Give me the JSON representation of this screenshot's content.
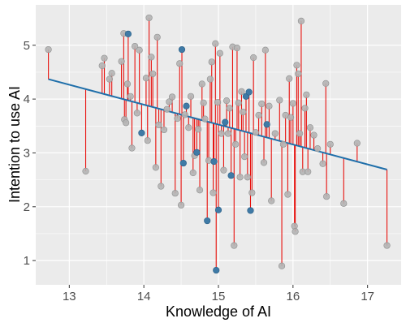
{
  "chart_data": {
    "type": "scatter",
    "xlabel": "Knowledge of AI",
    "ylabel": "Intention to use AI",
    "xlim": [
      12.55,
      17.45
    ],
    "ylim": [
      0.55,
      5.75
    ],
    "x_ticks": [
      13,
      14,
      15,
      16,
      17
    ],
    "y_ticks": [
      1,
      2,
      3,
      4,
      5
    ],
    "grid": true,
    "legend": "none",
    "regression_line": {
      "x": [
        12.72,
        17.26
      ],
      "y": [
        4.37,
        2.69
      ]
    },
    "colors": {
      "panel_background": "#ebebeb",
      "grid": "#ffffff",
      "regression_line": "#1f6faa",
      "residual": "#e8100c",
      "point_gray": "#b4b4b4",
      "point_blue": "#3f7aa6",
      "point_outline": "#8f8f8f"
    },
    "points": [
      {
        "x": 12.72,
        "y": 4.92,
        "hl": false
      },
      {
        "x": 13.22,
        "y": 2.66,
        "hl": false
      },
      {
        "x": 13.44,
        "y": 4.62,
        "hl": false
      },
      {
        "x": 13.47,
        "y": 4.76,
        "hl": false
      },
      {
        "x": 13.54,
        "y": 4.37,
        "hl": false
      },
      {
        "x": 13.57,
        "y": 4.48,
        "hl": false
      },
      {
        "x": 13.7,
        "y": 4.7,
        "hl": false
      },
      {
        "x": 13.73,
        "y": 5.22,
        "hl": false
      },
      {
        "x": 13.74,
        "y": 3.62,
        "hl": false
      },
      {
        "x": 13.76,
        "y": 3.56,
        "hl": false
      },
      {
        "x": 13.78,
        "y": 4.28,
        "hl": false
      },
      {
        "x": 13.79,
        "y": 5.21,
        "hl": true
      },
      {
        "x": 13.82,
        "y": 4.05,
        "hl": false
      },
      {
        "x": 13.84,
        "y": 3.09,
        "hl": false
      },
      {
        "x": 13.88,
        "y": 4.98,
        "hl": false
      },
      {
        "x": 13.91,
        "y": 3.74,
        "hl": false
      },
      {
        "x": 13.94,
        "y": 4.91,
        "hl": false
      },
      {
        "x": 13.97,
        "y": 3.37,
        "hl": true
      },
      {
        "x": 14.03,
        "y": 4.39,
        "hl": false
      },
      {
        "x": 14.05,
        "y": 3.23,
        "hl": false
      },
      {
        "x": 14.07,
        "y": 5.51,
        "hl": false
      },
      {
        "x": 14.1,
        "y": 4.78,
        "hl": false
      },
      {
        "x": 14.12,
        "y": 4.47,
        "hl": false
      },
      {
        "x": 14.16,
        "y": 2.73,
        "hl": false
      },
      {
        "x": 14.18,
        "y": 5.15,
        "hl": false
      },
      {
        "x": 14.2,
        "y": 3.52,
        "hl": false
      },
      {
        "x": 14.23,
        "y": 2.38,
        "hl": false
      },
      {
        "x": 14.27,
        "y": 3.43,
        "hl": false
      },
      {
        "x": 14.31,
        "y": 3.81,
        "hl": false
      },
      {
        "x": 14.34,
        "y": 3.95,
        "hl": false
      },
      {
        "x": 14.38,
        "y": 4.04,
        "hl": false
      },
      {
        "x": 14.42,
        "y": 2.25,
        "hl": false
      },
      {
        "x": 14.45,
        "y": 3.64,
        "hl": false
      },
      {
        "x": 14.48,
        "y": 4.66,
        "hl": false
      },
      {
        "x": 14.5,
        "y": 2.03,
        "hl": false
      },
      {
        "x": 14.51,
        "y": 4.92,
        "hl": true
      },
      {
        "x": 14.53,
        "y": 2.81,
        "hl": true
      },
      {
        "x": 14.55,
        "y": 3.71,
        "hl": false
      },
      {
        "x": 14.57,
        "y": 3.87,
        "hl": true
      },
      {
        "x": 14.6,
        "y": 3.47,
        "hl": false
      },
      {
        "x": 14.63,
        "y": 4.05,
        "hl": false
      },
      {
        "x": 14.66,
        "y": 2.63,
        "hl": false
      },
      {
        "x": 14.68,
        "y": 2.95,
        "hl": false
      },
      {
        "x": 14.71,
        "y": 3.01,
        "hl": true
      },
      {
        "x": 14.73,
        "y": 3.44,
        "hl": false
      },
      {
        "x": 14.75,
        "y": 2.31,
        "hl": false
      },
      {
        "x": 14.78,
        "y": 4.28,
        "hl": false
      },
      {
        "x": 14.8,
        "y": 3.93,
        "hl": false
      },
      {
        "x": 14.82,
        "y": 3.63,
        "hl": false
      },
      {
        "x": 14.85,
        "y": 1.74,
        "hl": true
      },
      {
        "x": 14.87,
        "y": 2.86,
        "hl": false
      },
      {
        "x": 14.89,
        "y": 4.37,
        "hl": false
      },
      {
        "x": 14.91,
        "y": 4.69,
        "hl": false
      },
      {
        "x": 14.93,
        "y": 2.26,
        "hl": false
      },
      {
        "x": 14.94,
        "y": 2.84,
        "hl": true
      },
      {
        "x": 14.96,
        "y": 5.03,
        "hl": false
      },
      {
        "x": 14.97,
        "y": 0.82,
        "hl": true
      },
      {
        "x": 14.99,
        "y": 3.94,
        "hl": false
      },
      {
        "x": 15.0,
        "y": 1.94,
        "hl": true
      },
      {
        "x": 15.02,
        "y": 4.85,
        "hl": false
      },
      {
        "x": 15.04,
        "y": 3.36,
        "hl": false
      },
      {
        "x": 15.07,
        "y": 2.68,
        "hl": false
      },
      {
        "x": 15.09,
        "y": 3.57,
        "hl": true
      },
      {
        "x": 15.11,
        "y": 3.97,
        "hl": false
      },
      {
        "x": 15.13,
        "y": 3.36,
        "hl": false
      },
      {
        "x": 15.15,
        "y": 3.83,
        "hl": false
      },
      {
        "x": 15.17,
        "y": 2.58,
        "hl": true
      },
      {
        "x": 15.19,
        "y": 4.97,
        "hl": false
      },
      {
        "x": 15.21,
        "y": 1.28,
        "hl": false
      },
      {
        "x": 15.23,
        "y": 3.16,
        "hl": false
      },
      {
        "x": 15.25,
        "y": 4.95,
        "hl": false
      },
      {
        "x": 15.27,
        "y": 3.93,
        "hl": false
      },
      {
        "x": 15.29,
        "y": 2.55,
        "hl": false
      },
      {
        "x": 15.31,
        "y": 4.14,
        "hl": false
      },
      {
        "x": 15.33,
        "y": 3.76,
        "hl": false
      },
      {
        "x": 15.35,
        "y": 2.93,
        "hl": false
      },
      {
        "x": 15.37,
        "y": 4.05,
        "hl": true
      },
      {
        "x": 15.39,
        "y": 2.55,
        "hl": false
      },
      {
        "x": 15.41,
        "y": 4.13,
        "hl": true
      },
      {
        "x": 15.43,
        "y": 1.93,
        "hl": true
      },
      {
        "x": 15.45,
        "y": 2.26,
        "hl": false
      },
      {
        "x": 15.47,
        "y": 4.77,
        "hl": false
      },
      {
        "x": 15.5,
        "y": 3.38,
        "hl": false
      },
      {
        "x": 15.54,
        "y": 3.7,
        "hl": false
      },
      {
        "x": 15.58,
        "y": 3.91,
        "hl": false
      },
      {
        "x": 15.61,
        "y": 2.82,
        "hl": false
      },
      {
        "x": 15.63,
        "y": 4.91,
        "hl": false
      },
      {
        "x": 15.65,
        "y": 3.53,
        "hl": true
      },
      {
        "x": 15.68,
        "y": 3.87,
        "hl": false
      },
      {
        "x": 15.71,
        "y": 2.11,
        "hl": false
      },
      {
        "x": 15.76,
        "y": 3.36,
        "hl": false
      },
      {
        "x": 15.82,
        "y": 3.98,
        "hl": false
      },
      {
        "x": 15.85,
        "y": 0.9,
        "hl": false
      },
      {
        "x": 15.87,
        "y": 3.16,
        "hl": false
      },
      {
        "x": 15.9,
        "y": 3.7,
        "hl": false
      },
      {
        "x": 15.93,
        "y": 2.23,
        "hl": false
      },
      {
        "x": 15.95,
        "y": 4.38,
        "hl": false
      },
      {
        "x": 15.97,
        "y": 3.66,
        "hl": false
      },
      {
        "x": 16.0,
        "y": 3.92,
        "hl": false
      },
      {
        "x": 16.02,
        "y": 1.64,
        "hl": false
      },
      {
        "x": 16.03,
        "y": 1.54,
        "hl": false
      },
      {
        "x": 16.05,
        "y": 4.63,
        "hl": false
      },
      {
        "x": 16.07,
        "y": 4.47,
        "hl": false
      },
      {
        "x": 16.09,
        "y": 3.36,
        "hl": false
      },
      {
        "x": 16.11,
        "y": 5.45,
        "hl": false
      },
      {
        "x": 16.13,
        "y": 2.65,
        "hl": false
      },
      {
        "x": 16.16,
        "y": 3.83,
        "hl": false
      },
      {
        "x": 16.18,
        "y": 4.08,
        "hl": false
      },
      {
        "x": 16.2,
        "y": 2.65,
        "hl": false
      },
      {
        "x": 16.23,
        "y": 3.47,
        "hl": false
      },
      {
        "x": 16.28,
        "y": 3.33,
        "hl": false
      },
      {
        "x": 16.33,
        "y": 3.08,
        "hl": false
      },
      {
        "x": 16.4,
        "y": 2.8,
        "hl": false
      },
      {
        "x": 16.44,
        "y": 4.29,
        "hl": false
      },
      {
        "x": 16.45,
        "y": 2.19,
        "hl": false
      },
      {
        "x": 16.5,
        "y": 3.16,
        "hl": false
      },
      {
        "x": 16.68,
        "y": 2.06,
        "hl": false
      },
      {
        "x": 16.86,
        "y": 3.18,
        "hl": false
      },
      {
        "x": 17.26,
        "y": 1.28,
        "hl": false
      }
    ]
  }
}
